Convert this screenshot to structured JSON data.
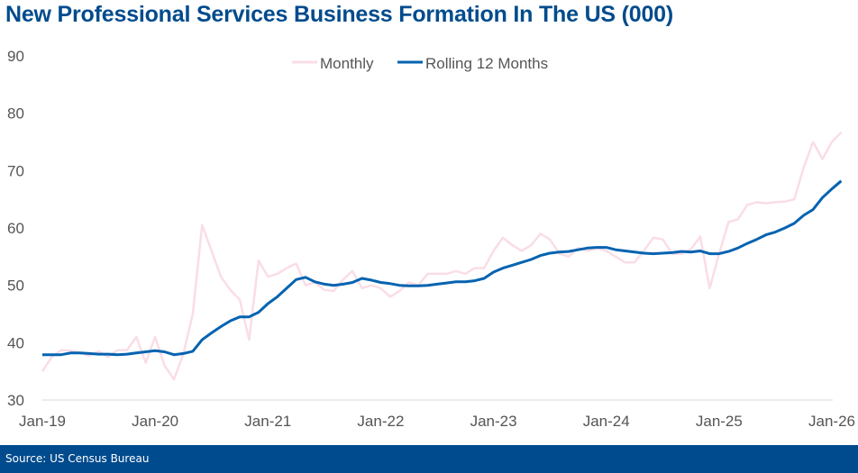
{
  "header": {
    "title": "New Professional Services Business Formation In The US (000)"
  },
  "footer": {
    "source": "Source: US Census Bureau"
  },
  "colors": {
    "monthly": "#fadde6",
    "rolling": "#0563b0",
    "title": "#004b8d",
    "footer_bg": "#004b8d",
    "axis": "#d9d9d9"
  },
  "chart_data": {
    "type": "line",
    "title": "New Professional Services Business Formation In The US (000)",
    "xlabel": "",
    "ylabel": "",
    "ylim": [
      30,
      90
    ],
    "yticks": [
      "30",
      "40",
      "50",
      "60",
      "70",
      "80",
      "90"
    ],
    "xticks": [
      "Jan-19",
      "Jan-20",
      "Jan-21",
      "Jan-22",
      "Jan-23",
      "Jan-24",
      "Jan-25",
      "Jan-26"
    ],
    "x_start": "Jan-19",
    "x_end": "Jan-26",
    "grid": false,
    "legend": {
      "position": "top-center",
      "entries": [
        "Monthly",
        "Rolling 12 Months"
      ]
    },
    "series": [
      {
        "name": "Monthly",
        "values": [
          35.0,
          37.5,
          38.7,
          38.6,
          38.3,
          37.7,
          38.5,
          37.5,
          38.7,
          38.7,
          41.0,
          36.5,
          41.0,
          36.0,
          33.6,
          38.0,
          45.0,
          60.5,
          56.0,
          51.5,
          49.2,
          47.5,
          40.5,
          54.3,
          51.5,
          52.0,
          53.0,
          53.8,
          50.0,
          50.5,
          49.2,
          49.0,
          51.0,
          52.5,
          49.5,
          50.0,
          49.5,
          48.0,
          49.0,
          50.5,
          50.0,
          52.0,
          52.0,
          52.0,
          52.5,
          52.0,
          53.0,
          53.0,
          56.0,
          58.3,
          57.0,
          56.0,
          57.0,
          59.0,
          58.0,
          55.5,
          55.0,
          56.5,
          56.0,
          56.5,
          56.0,
          55.0,
          54.0,
          54.0,
          56.0,
          58.3,
          58.0,
          55.5,
          55.5,
          56.3,
          58.5,
          49.5,
          55.5,
          61.0,
          61.5,
          64.0,
          64.5,
          64.3,
          64.5,
          64.6,
          65.0,
          70.5,
          75.0,
          72.0,
          75.0,
          76.7
        ]
      },
      {
        "name": "Rolling 12 Months",
        "values": [
          37.9,
          37.9,
          37.9,
          38.2,
          38.2,
          38.1,
          38.0,
          38.0,
          37.9,
          38.0,
          38.2,
          38.4,
          38.6,
          38.4,
          37.9,
          38.1,
          38.5,
          40.5,
          41.7,
          42.8,
          43.8,
          44.5,
          44.5,
          45.3,
          46.8,
          48.0,
          49.5,
          51.0,
          51.4,
          50.6,
          50.2,
          50.0,
          50.2,
          50.5,
          51.2,
          50.9,
          50.5,
          50.3,
          50.0,
          49.9,
          49.9,
          50.0,
          50.2,
          50.4,
          50.6,
          50.6,
          50.8,
          51.2,
          52.3,
          53.0,
          53.5,
          54.0,
          54.5,
          55.2,
          55.6,
          55.8,
          55.9,
          56.2,
          56.5,
          56.6,
          56.6,
          56.2,
          56.0,
          55.8,
          55.6,
          55.5,
          55.6,
          55.7,
          55.9,
          55.8,
          56.0,
          55.5,
          55.5,
          55.9,
          56.5,
          57.3,
          58.0,
          58.8,
          59.3,
          60.0,
          60.8,
          62.2,
          63.2,
          65.3,
          66.8,
          68.2
        ]
      }
    ]
  }
}
